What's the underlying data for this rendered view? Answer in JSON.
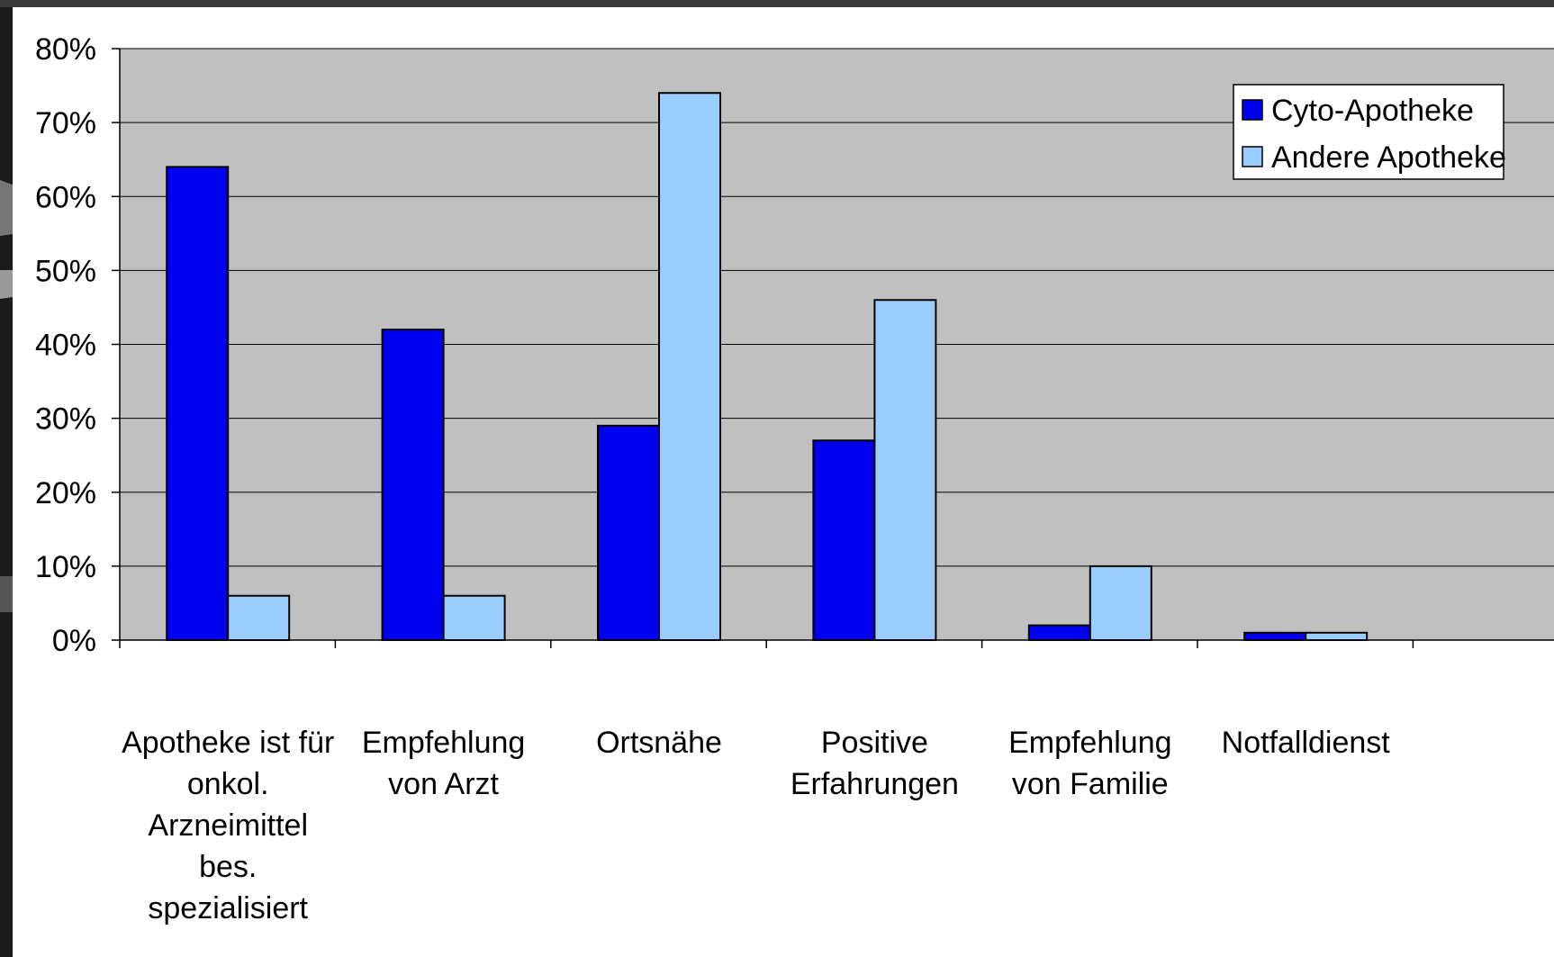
{
  "chart_data": {
    "type": "bar",
    "title": "",
    "xlabel": "",
    "ylabel": "",
    "categories": [
      [
        "Apotheke ist für",
        "onkol.",
        "Arzneimittel",
        "bes.",
        "spezialisiert"
      ],
      [
        "Empfehlung",
        "von Arzt"
      ],
      [
        "Ortsnähe"
      ],
      [
        "Positive",
        "Erfahrungen"
      ],
      [
        "Empfehlung",
        "von Familie"
      ],
      [
        "Notfalldienst"
      ]
    ],
    "series": [
      {
        "name": "Cyto-Apotheke",
        "color": "#0000ee",
        "values": [
          0.64,
          0.42,
          0.29,
          0.27,
          0.02,
          0.01
        ]
      },
      {
        "name": "Andere Apotheke",
        "color": "#99ccff",
        "values": [
          0.06,
          0.06,
          0.74,
          0.46,
          0.1,
          0.01
        ]
      }
    ],
    "ylim": [
      0,
      0.8
    ],
    "yticks": [
      "0%",
      "10%",
      "20%",
      "30%",
      "40%",
      "50%",
      "60%",
      "70%",
      "80%"
    ],
    "grid": true,
    "plot_background": "#c0c0c0",
    "legend_position": "top-right"
  }
}
